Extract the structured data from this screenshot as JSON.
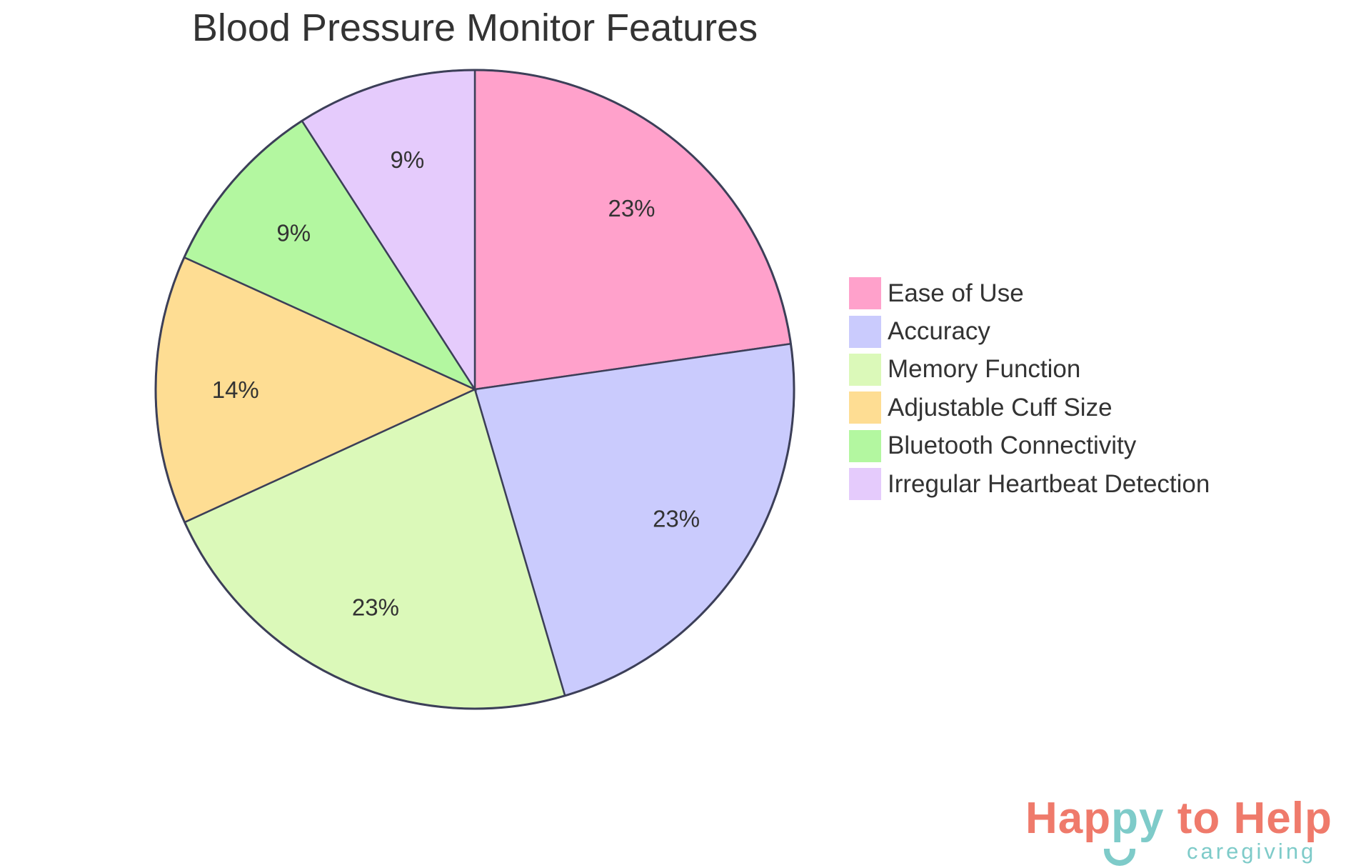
{
  "chart_data": {
    "type": "pie",
    "title": "Blood Pressure Monitor Features",
    "categories": [
      "Ease of Use",
      "Accuracy",
      "Memory Function",
      "Adjustable Cuff Size",
      "Bluetooth Connectivity",
      "Irregular Heartbeat Detection"
    ],
    "values": [
      22.7,
      22.7,
      22.7,
      13.6,
      9.1,
      9.1
    ],
    "labels": [
      "23%",
      "23%",
      "23%",
      "14%",
      "9%",
      "9%"
    ],
    "colors": [
      "#ffa1cb",
      "#cacbfd",
      "#dbf9b9",
      "#fedd93",
      "#b3f7a0",
      "#e5cbfc"
    ],
    "stroke": "#3c3f58",
    "start_angle_deg": 0,
    "direction": "clockwise",
    "legend_position": "right"
  },
  "legend": {
    "items": [
      {
        "label": "Ease of Use",
        "color": "#ffa1cb"
      },
      {
        "label": "Accuracy",
        "color": "#cacbfd"
      },
      {
        "label": "Memory Function",
        "color": "#dbf9b9"
      },
      {
        "label": "Adjustable Cuff Size",
        "color": "#fedd93"
      },
      {
        "label": "Bluetooth Connectivity",
        "color": "#b3f7a0"
      },
      {
        "label": "Irregular Heartbeat Detection",
        "color": "#e5cbfc"
      }
    ]
  },
  "logo": {
    "part1": "Hap",
    "part2": "py",
    "part3": " to Help",
    "subtitle": "caregiving"
  }
}
